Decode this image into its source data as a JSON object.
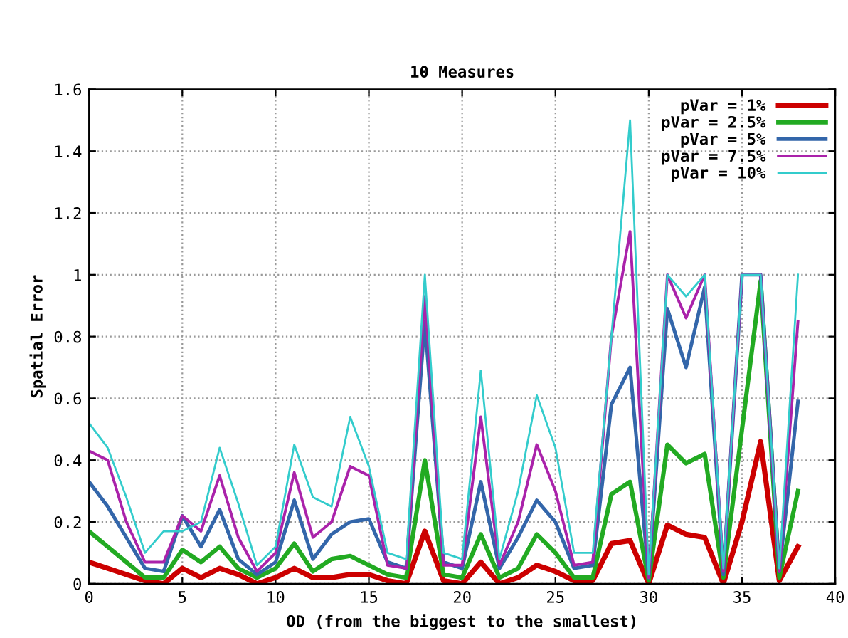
{
  "chart_data": {
    "type": "line",
    "title": "10 Measures",
    "xlabel": "OD (from the biggest to the smallest)",
    "ylabel": "Spatial Error",
    "x": [
      0,
      1,
      2,
      3,
      4,
      5,
      6,
      7,
      8,
      9,
      10,
      11,
      12,
      13,
      14,
      15,
      16,
      17,
      18,
      19,
      20,
      21,
      22,
      23,
      24,
      25,
      26,
      27,
      28,
      29,
      30,
      31,
      32,
      33,
      34,
      35,
      36,
      37,
      38
    ],
    "series": [
      {
        "name": "pVar = 1%",
        "color": "#cc0000",
        "values": [
          0.07,
          0.05,
          0.03,
          0.01,
          0,
          0.05,
          0.02,
          0.05,
          0.03,
          0,
          0.02,
          0.05,
          0.02,
          0.02,
          0.03,
          0.03,
          0.01,
          0,
          0.17,
          0.01,
          0,
          0.07,
          0,
          0.02,
          0.06,
          0.04,
          0.01,
          0.01,
          0.13,
          0.14,
          0,
          0.19,
          0.16,
          0.15,
          0,
          0.2,
          0.46,
          0.01,
          0.12
        ]
      },
      {
        "name": "pVar = 2.5%",
        "color": "#22aa22",
        "values": [
          0.17,
          0.12,
          0.07,
          0.02,
          0.02,
          0.11,
          0.07,
          0.12,
          0.05,
          0.02,
          0.05,
          0.13,
          0.04,
          0.08,
          0.09,
          0.06,
          0.03,
          0.02,
          0.4,
          0.03,
          0.02,
          0.16,
          0.02,
          0.05,
          0.16,
          0.1,
          0.02,
          0.02,
          0.29,
          0.33,
          0.01,
          0.45,
          0.39,
          0.42,
          0.02,
          0.5,
          0.98,
          0.02,
          0.3
        ]
      },
      {
        "name": "pVar = 5%",
        "color": "#3366aa",
        "values": [
          0.33,
          0.25,
          0.15,
          0.05,
          0.04,
          0.22,
          0.12,
          0.24,
          0.08,
          0.03,
          0.07,
          0.27,
          0.08,
          0.16,
          0.2,
          0.21,
          0.07,
          0.05,
          0.85,
          0.07,
          0.05,
          0.33,
          0.05,
          0.15,
          0.27,
          0.2,
          0.05,
          0.06,
          0.58,
          0.7,
          0.02,
          0.89,
          0.7,
          0.96,
          0.03,
          1.0,
          1.0,
          0.04,
          0.59
        ]
      },
      {
        "name": "pVar = 7.5%",
        "color": "#aa22aa",
        "values": [
          0.43,
          0.4,
          0.2,
          0.07,
          0.07,
          0.22,
          0.17,
          0.35,
          0.15,
          0.04,
          0.1,
          0.36,
          0.15,
          0.2,
          0.38,
          0.35,
          0.06,
          0.05,
          0.93,
          0.06,
          0.06,
          0.54,
          0.06,
          0.2,
          0.45,
          0.3,
          0.06,
          0.07,
          0.8,
          1.14,
          0.02,
          1.0,
          0.86,
          1.0,
          0.04,
          1.0,
          1.0,
          0.04,
          0.85
        ]
      },
      {
        "name": "pVar = 10%",
        "color": "#33cccc",
        "values": [
          0.52,
          0.44,
          0.28,
          0.1,
          0.17,
          0.17,
          0.2,
          0.44,
          0.26,
          0.06,
          0.12,
          0.45,
          0.28,
          0.25,
          0.54,
          0.38,
          0.1,
          0.08,
          1.0,
          0.1,
          0.08,
          0.69,
          0.08,
          0.3,
          0.61,
          0.44,
          0.1,
          0.1,
          0.8,
          1.5,
          0.03,
          1.0,
          0.93,
          1.0,
          0.05,
          1.0,
          1.0,
          0.05,
          1.0
        ]
      }
    ],
    "xlim": [
      0,
      40
    ],
    "xticks": [
      0,
      5,
      10,
      15,
      20,
      25,
      30,
      35,
      40
    ],
    "ylim": [
      0,
      1.6
    ],
    "yticks": [
      0,
      0.2,
      0.4,
      0.6,
      0.8,
      1,
      1.2,
      1.4,
      1.6
    ],
    "grid": true,
    "legend": "top right",
    "line_style": "solid",
    "marker": "none"
  }
}
